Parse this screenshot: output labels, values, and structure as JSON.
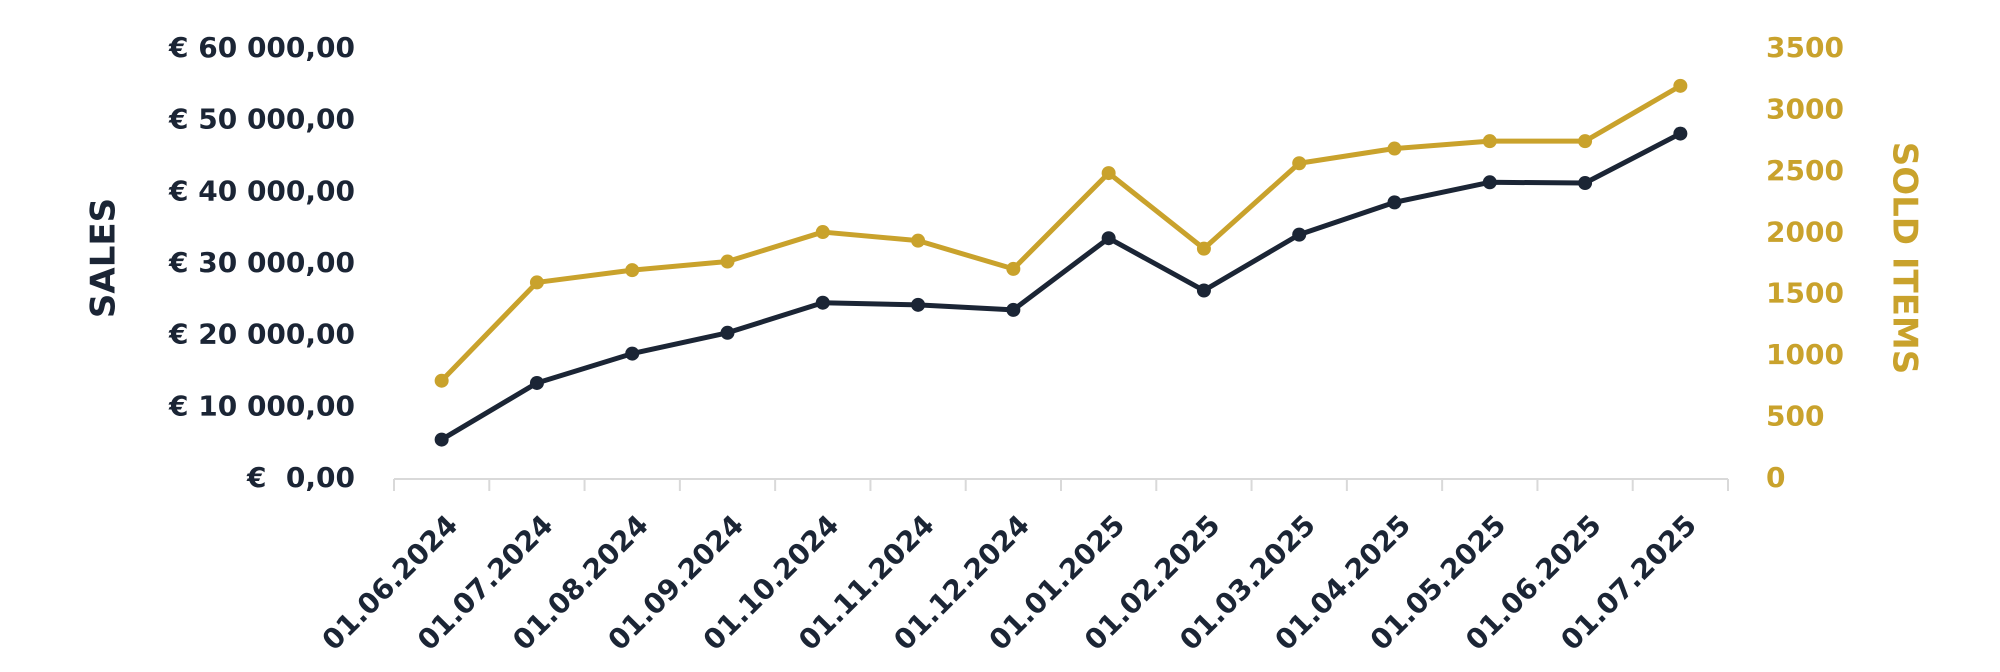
{
  "chart_data": {
    "type": "line",
    "categories": [
      "01.06.2024",
      "01.07.2024",
      "01.08.2024",
      "01.09.2024",
      "01.10.2024",
      "01.11.2024",
      "01.12.2024",
      "01.01.2025",
      "01.02.2025",
      "01.03.2025",
      "01.04.2025",
      "01.05.2025",
      "01.06.2025",
      "01.07.2025"
    ],
    "y_label": "SALES",
    "y2_label": "SOLD ITEMS",
    "series": [
      {
        "name": "Sales",
        "color": "#1b2535",
        "values": [
          5500,
          13400,
          17500,
          20400,
          24600,
          24300,
          23600,
          33600,
          26300,
          34100,
          38600,
          41400,
          41300,
          48200
        ]
      },
      {
        "name": "Sold items",
        "color": "#c9a22c",
        "axis": "y2",
        "values": [
          800,
          1600,
          1700,
          1770,
          2010,
          1940,
          1710,
          2490,
          1875,
          2570,
          2690,
          2750,
          2750,
          3200
        ]
      }
    ],
    "ylim": [
      0,
      60000
    ],
    "yticks": [
      {
        "value": 0,
        "label": "€  0,00"
      },
      {
        "value": 10000,
        "label": "€ 10 000,00"
      },
      {
        "value": 20000,
        "label": "€ 20 000,00"
      },
      {
        "value": 30000,
        "label": "€ 30 000,00"
      },
      {
        "value": 40000,
        "label": "€ 40 000,00"
      },
      {
        "value": 50000,
        "label": "€ 50 000,00"
      },
      {
        "value": 60000,
        "label": "€ 60 000,00"
      }
    ],
    "y2lim": [
      0,
      3500
    ],
    "y2ticks": [
      0,
      500,
      1000,
      1500,
      2000,
      2500,
      3000,
      3500
    ],
    "grid": false
  }
}
